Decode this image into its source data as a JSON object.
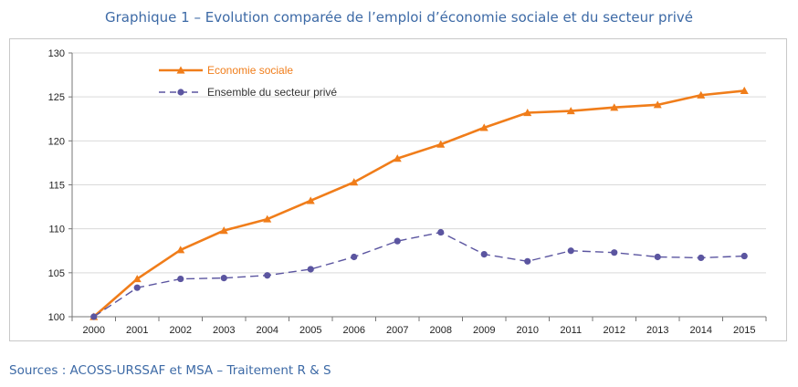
{
  "title": "Graphique 1 – Evolution comparée de l’emploi d’économie sociale et du secteur privé",
  "source": "Sources : ACOSS-URSSAF et MSA – Traitement R & S",
  "chart_data": {
    "type": "line",
    "title": "Graphique 1 – Evolution comparée de l’emploi d’économie sociale et du secteur privé",
    "xlabel": "",
    "ylabel": "",
    "categories": [
      "2000",
      "2001",
      "2002",
      "2003",
      "2004",
      "2005",
      "2006",
      "2007",
      "2008",
      "2009",
      "2010",
      "2011",
      "2012",
      "2013",
      "2014",
      "2015"
    ],
    "ylim": [
      100,
      130
    ],
    "yticks": [
      "100",
      "105",
      "110",
      "115",
      "120",
      "125",
      "130"
    ],
    "grid": true,
    "legend_position": "top-left",
    "series": [
      {
        "name": "Economie sociale",
        "color": "#f07d1a",
        "marker": "triangle",
        "style": "solid",
        "values": [
          100.0,
          104.3,
          107.6,
          109.8,
          111.1,
          113.2,
          115.3,
          118.0,
          119.6,
          121.5,
          123.2,
          123.4,
          123.8,
          124.1,
          125.2,
          125.7
        ]
      },
      {
        "name": "Ensemble du secteur privé",
        "color": "#5b55a0",
        "marker": "circle",
        "style": "dashed",
        "values": [
          100.0,
          103.3,
          104.3,
          104.4,
          104.7,
          105.4,
          106.8,
          108.6,
          109.6,
          107.1,
          106.3,
          107.5,
          107.3,
          106.8,
          106.7,
          106.9
        ]
      }
    ]
  }
}
